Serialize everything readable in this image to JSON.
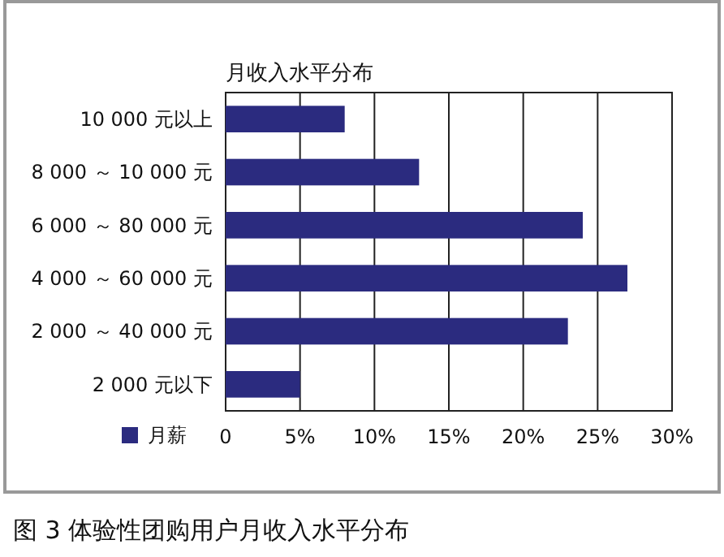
{
  "chart_data": {
    "type": "bar",
    "orientation": "horizontal",
    "title": "月收入水平分布",
    "categories": [
      "10 000 元以上",
      "8 000 ～ 10 000 元",
      "6 000 ～ 80 000 元",
      "4 000 ～ 60 000 元",
      "2 000 ～ 40 000 元",
      "2 000 元以下"
    ],
    "series": [
      {
        "name": "月薪",
        "color": "#2b2b7f",
        "values": [
          8,
          13,
          24,
          27,
          23,
          5
        ]
      }
    ],
    "xlim": [
      0,
      30
    ],
    "xticks": [
      0,
      {
        "value": 5,
        "label": "5%"
      },
      {
        "value": 10,
        "label": "10%"
      },
      {
        "value": 15,
        "label": "15%"
      },
      {
        "value": 20,
        "label": "20%"
      },
      {
        "value": 25,
        "label": "25%"
      },
      {
        "value": 30,
        "label": "30%"
      }
    ],
    "grid": "x",
    "legend": "bottom left",
    "annotations": [
      "图 3 体验性团购用户月收入水平分布"
    ]
  }
}
